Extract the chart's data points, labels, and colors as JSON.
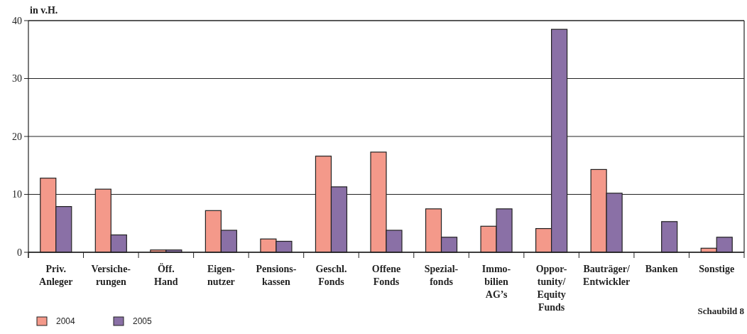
{
  "chart_data": {
    "type": "bar",
    "ylabel": "in v.H.",
    "categories": [
      "Priv.\nAnleger",
      "Versiche-\nrungen",
      "Öff.\nHand",
      "Eigen-\nnutzer",
      "Pensions-\nkassen",
      "Geschl.\nFonds",
      "Offene\nFonds",
      "Spezial-\nfonds",
      "Immo-\nbilien\nAG’s",
      "Oppor-\ntunity/\nEquity\nFunds",
      "Bauträger/\nEntwickler",
      "Banken",
      "Sonstige"
    ],
    "series": [
      {
        "name": "2004",
        "color": "#f4998a",
        "values": [
          12.8,
          10.9,
          0.4,
          7.2,
          2.3,
          16.6,
          17.3,
          7.5,
          4.5,
          4.1,
          14.3,
          null,
          0.7
        ]
      },
      {
        "name": "2005",
        "color": "#8a70a6",
        "values": [
          7.9,
          3.0,
          0.4,
          3.8,
          1.9,
          11.3,
          3.8,
          2.6,
          7.5,
          38.5,
          10.2,
          5.3,
          2.6
        ]
      }
    ],
    "ylim": [
      0,
      40
    ],
    "yticks": [
      0,
      10,
      20,
      30,
      40
    ],
    "grid": "y",
    "legend": "bottom left",
    "annotations": [
      "Schaubild 8"
    ]
  }
}
